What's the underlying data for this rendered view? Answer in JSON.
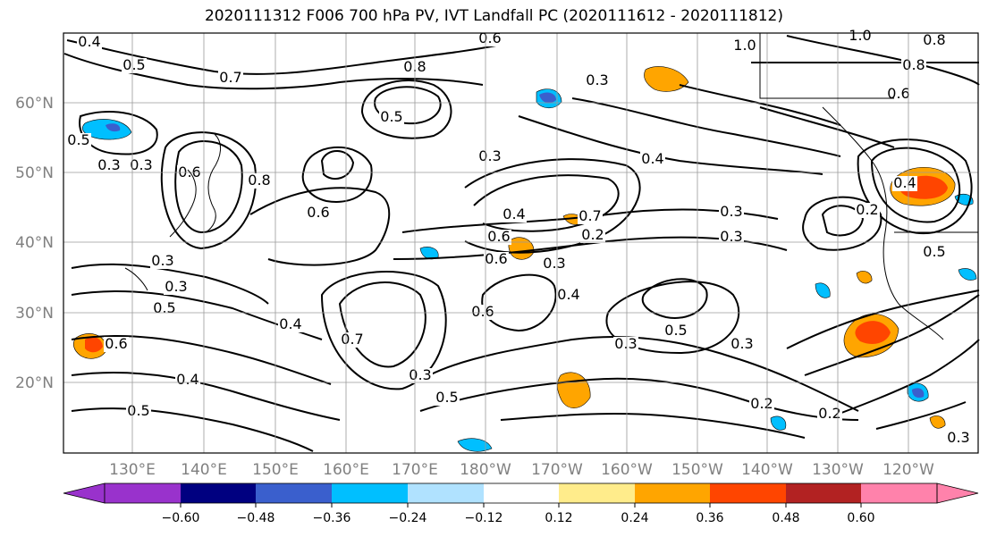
{
  "title": "2020111312 F006 700 hPa PV, IVT Landfall PC (2020111612 - 2020111812)",
  "map": {
    "lat_labels": [
      "60°N",
      "50°N",
      "40°N",
      "30°N",
      "20°N"
    ],
    "lon_labels": [
      "130°E",
      "140°E",
      "150°E",
      "160°E",
      "170°E",
      "180°W",
      "170°W",
      "160°W",
      "150°W",
      "140°W",
      "130°W",
      "120°W"
    ],
    "contour_labels": [
      "0.4",
      "0.5",
      "0.6",
      "0.8",
      "1.0",
      "1.0",
      "0.8",
      "0.8",
      "0.6",
      "0.7",
      "0.5",
      "0.3",
      "0.3",
      "0.5",
      "0.6",
      "0.8",
      "0.6",
      "0.3",
      "0.4",
      "0.6",
      "0.4",
      "0.7",
      "0.6",
      "0.3",
      "0.3",
      "0.3",
      "0.5",
      "0.6",
      "0.4",
      "0.7",
      "0.6",
      "0.4",
      "0.3",
      "0.5",
      "0.5",
      "0.3",
      "0.3",
      "0.4",
      "0.5",
      "0.2",
      "0.2",
      "0.5",
      "0.3",
      "0.2",
      "0.3",
      "0.2",
      "0.4",
      "0.3",
      "0.3"
    ]
  },
  "colorbar": {
    "ticks": [
      "−0.60",
      "−0.48",
      "−0.36",
      "−0.24",
      "−0.12",
      "0.12",
      "0.24",
      "0.36",
      "0.48",
      "0.60"
    ],
    "colors": [
      "#9932cc",
      "#000080",
      "#3a5fcd",
      "#00bfff",
      "#b0e2ff",
      "#ffffff",
      "#ffec8b",
      "#ffa500",
      "#ff4500",
      "#b22222",
      "#ff82ab"
    ]
  }
}
